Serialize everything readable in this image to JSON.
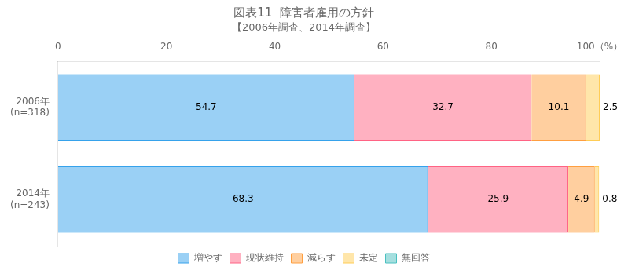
{
  "chart_data": {
    "type": "bar",
    "orientation": "horizontal",
    "stacked": true,
    "title": "図表11  障害者雇用の方針",
    "subtitle": "【2006年調査、2014年調査】",
    "categories": [
      "2006年\n(n=318)",
      "2014年\n(n=243)"
    ],
    "series": [
      {
        "name": "増やす",
        "values": [
          54.7,
          68.3
        ]
      },
      {
        "name": "現状維持",
        "values": [
          32.7,
          25.9
        ]
      },
      {
        "name": "減らす",
        "values": [
          10.1,
          4.9
        ]
      },
      {
        "name": "未定",
        "values": [
          2.5,
          0.8
        ]
      },
      {
        "name": "無回答",
        "values": [
          null,
          null
        ]
      }
    ],
    "xlim": [
      0,
      100
    ],
    "xticks": [
      0,
      20,
      40,
      60,
      80,
      {
        "value": 100,
        "label": "100（%）"
      }
    ],
    "grid": false,
    "legend": "bottom",
    "data_labels": true
  }
}
